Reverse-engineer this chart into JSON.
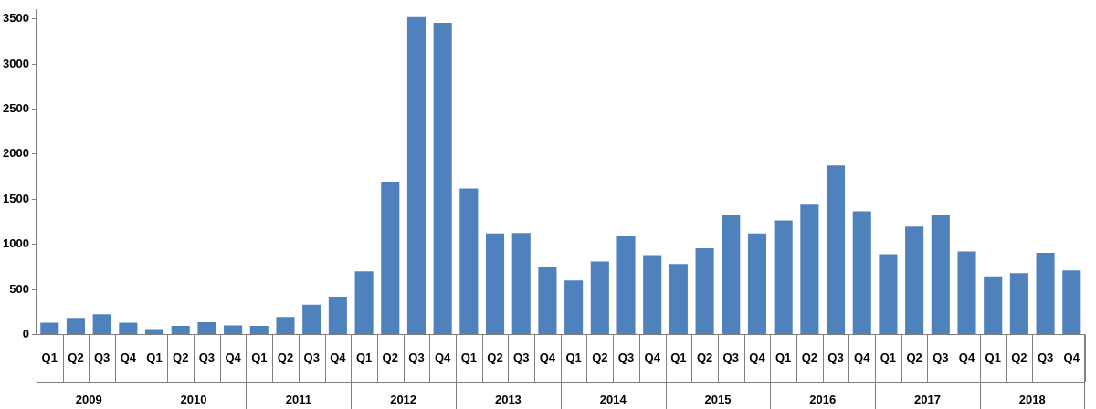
{
  "chart_data": {
    "type": "bar",
    "categories": [
      "Q1",
      "Q2",
      "Q3",
      "Q4",
      "Q1",
      "Q2",
      "Q3",
      "Q4",
      "Q1",
      "Q2",
      "Q3",
      "Q4",
      "Q1",
      "Q2",
      "Q3",
      "Q4",
      "Q1",
      "Q2",
      "Q3",
      "Q4",
      "Q1",
      "Q2",
      "Q3",
      "Q4",
      "Q1",
      "Q2",
      "Q3",
      "Q4",
      "Q1",
      "Q2",
      "Q3",
      "Q4",
      "Q1",
      "Q2",
      "Q3",
      "Q4",
      "Q1",
      "Q2",
      "Q3",
      "Q4"
    ],
    "values": [
      130,
      185,
      225,
      130,
      60,
      95,
      135,
      100,
      95,
      195,
      330,
      420,
      700,
      1695,
      3520,
      3455,
      1620,
      1120,
      1125,
      750,
      600,
      810,
      1090,
      880,
      780,
      955,
      1325,
      1120,
      1265,
      1450,
      1875,
      1365,
      890,
      1195,
      1325,
      920,
      645,
      680,
      905,
      710
    ],
    "color": "#4f81bd",
    "ylim": [
      0,
      3600
    ],
    "yticks": [
      0,
      500,
      1000,
      1500,
      2000,
      2500,
      3000,
      3500
    ],
    "grid": false,
    "legend": false,
    "annotations": [
      "2009",
      "2010",
      "2011",
      "2012",
      "2013",
      "2014",
      "2015",
      "2016",
      "2017",
      "2018"
    ]
  }
}
